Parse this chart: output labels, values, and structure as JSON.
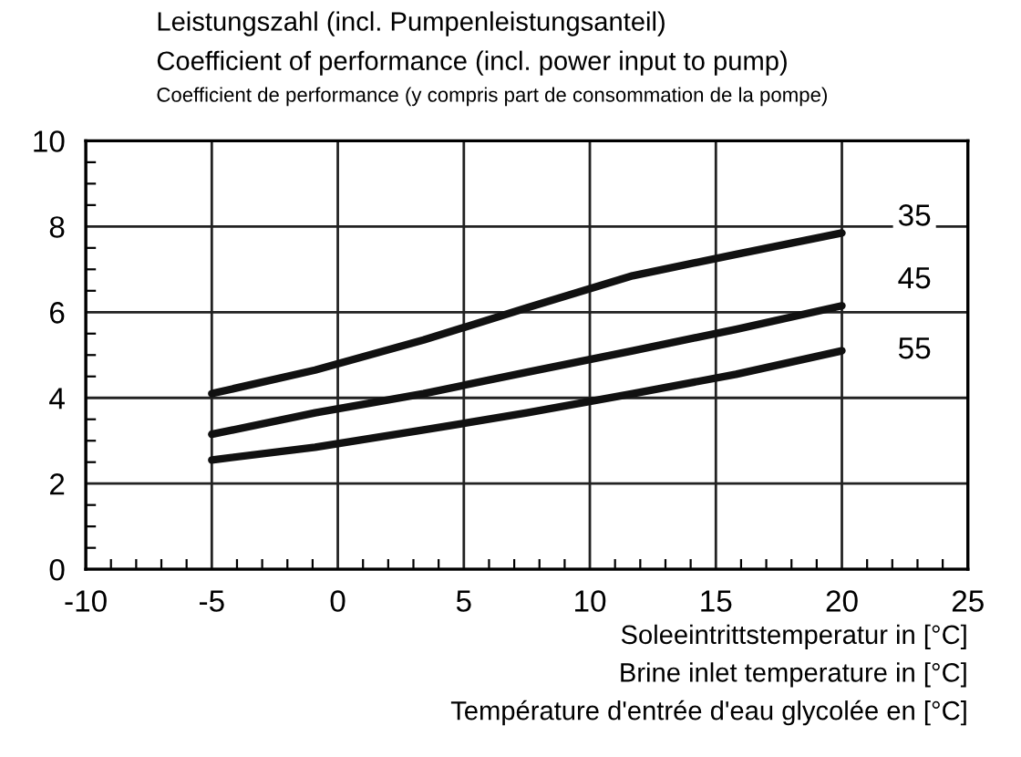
{
  "chart_data": {
    "type": "line",
    "ylabel": "Leistungszahl (incl. Pumpenleistungsanteil)\nCoefficient of performance (incl. power input to pump)\nCoefficient de performance (y compris part de consommation de la pompe)",
    "xlabel": "Soleeintrittstemperatur in [°C]\nBrine inlet temperature in [°C]\nTempérature d'entrée d'eau glycolée en [°C]",
    "x": [
      -5,
      -0.9,
      3.4,
      7.5,
      11.7,
      15.8,
      20
    ],
    "series": [
      {
        "name": "35",
        "color": "#111111",
        "values": [
          4.1,
          4.65,
          5.35,
          6.1,
          6.85,
          7.35,
          7.85
        ]
      },
      {
        "name": "45",
        "color": "#111111",
        "values": [
          3.15,
          3.65,
          4.1,
          4.6,
          5.1,
          5.6,
          6.15
        ]
      },
      {
        "name": "55",
        "color": "#111111",
        "values": [
          2.55,
          2.85,
          3.25,
          3.65,
          4.1,
          4.55,
          5.1
        ]
      }
    ],
    "xlim": [
      -10,
      25
    ],
    "xticks": [
      -10,
      -5,
      0,
      5,
      10,
      15,
      20,
      25
    ],
    "ylim": [
      0,
      10
    ],
    "yticks": [
      0,
      2,
      4,
      6,
      8,
      10
    ],
    "grid": true,
    "legend": false,
    "marker": "none",
    "line_style": "solid"
  }
}
